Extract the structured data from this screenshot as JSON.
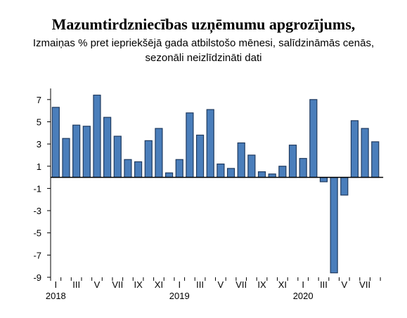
{
  "chart_data": {
    "type": "bar",
    "title": "Mazumtirdzniecības uzņēmumu apgrozījums,",
    "subtitle_line1": "Izmaiņas % pret iepriekšējā gada atbilstošo mēnesi, salīdzināmās cenās,",
    "subtitle_line2": "sezonāli neizlīdzināti dati",
    "ylim": [
      -9,
      8
    ],
    "yticks": [
      7,
      5,
      3,
      1,
      -1,
      -3,
      -5,
      -7,
      -9
    ],
    "month_labels": [
      "I",
      "III",
      "V",
      "VII",
      "IX",
      "XI",
      "I",
      "III",
      "V",
      "VII",
      "IX",
      "XI",
      "I",
      "III",
      "V",
      "VII"
    ],
    "year_labels": [
      "2018",
      "2019",
      "2020"
    ],
    "categories": [
      "2018-I",
      "2018-II",
      "2018-III",
      "2018-IV",
      "2018-V",
      "2018-VI",
      "2018-VII",
      "2018-VIII",
      "2018-IX",
      "2018-X",
      "2018-XI",
      "2018-XII",
      "2019-I",
      "2019-II",
      "2019-III",
      "2019-IV",
      "2019-V",
      "2019-VI",
      "2019-VII",
      "2019-VIII",
      "2019-IX",
      "2019-X",
      "2019-XI",
      "2019-XII",
      "2020-I",
      "2020-II",
      "2020-III",
      "2020-IV",
      "2020-V",
      "2020-VI",
      "2020-VII",
      "2020-VIII"
    ],
    "values": [
      6.3,
      3.5,
      4.7,
      4.6,
      7.4,
      5.4,
      3.7,
      1.6,
      1.4,
      3.3,
      4.4,
      0.4,
      1.6,
      5.8,
      3.8,
      6.1,
      1.2,
      0.8,
      3.1,
      2.0,
      0.5,
      0.3,
      1.0,
      2.9,
      1.7,
      7.0,
      -0.4,
      -8.6,
      -1.6,
      5.1,
      4.4,
      3.2
    ],
    "colors": {
      "bar_fill": "#4a7ebb",
      "bar_stroke": "#1f3a5f",
      "axis": "#000000"
    },
    "grid": false
  }
}
